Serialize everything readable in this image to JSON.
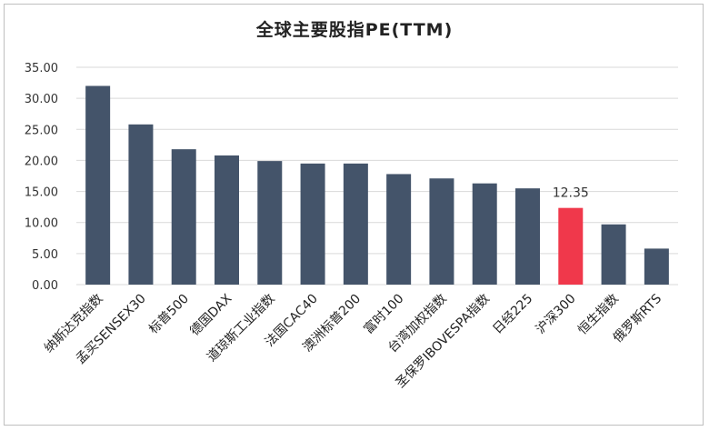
{
  "chart_data": {
    "type": "bar",
    "title": "全球主要股指PE(TTM)",
    "xlabel": "",
    "ylabel": "",
    "ylim": [
      0,
      35
    ],
    "yticks": [
      "0.00",
      "5.00",
      "10.00",
      "15.00",
      "20.00",
      "25.00",
      "30.00",
      "35.00"
    ],
    "grid": true,
    "legend": "none",
    "categories": [
      "纳斯达克指数",
      "孟买SENSEX30",
      "标普500",
      "德国DAX",
      "道琼斯工业指数",
      "法国CAC40",
      "澳洲标普200",
      "富时100",
      "台湾加权指数",
      "圣保罗IBOVESPA指数",
      "日经225",
      "沪深300",
      "恒生指数",
      "俄罗斯RTS"
    ],
    "values": [
      32.0,
      25.8,
      21.8,
      20.8,
      19.9,
      19.5,
      19.5,
      17.8,
      17.1,
      16.3,
      15.5,
      12.35,
      9.7,
      5.8
    ],
    "highlight_index": 11,
    "data_labels": [
      {
        "index": 11,
        "text": "12.35"
      }
    ],
    "colors": {
      "bar": "#44546a",
      "highlight": "#f0384b",
      "grid": "#d9d9d9"
    }
  }
}
